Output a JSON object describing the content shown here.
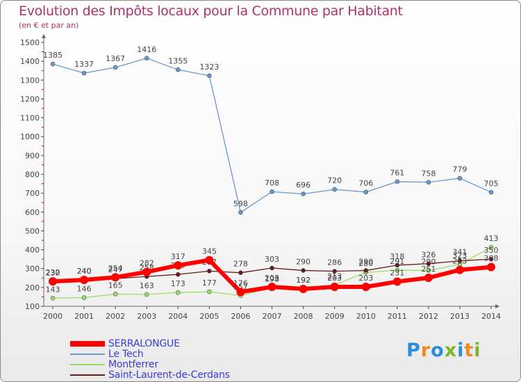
{
  "chart_data": {
    "type": "line",
    "title": "Evolution des Impôts locaux pour la Commune par Habitant",
    "subtitle": "(en € et par an)",
    "x": [
      "2000",
      "2001",
      "2002",
      "2003",
      "2004",
      "2005",
      "2006",
      "2007",
      "2008",
      "2009",
      "2010",
      "2011",
      "2012",
      "2013",
      "2014"
    ],
    "ylim": [
      100,
      1500
    ],
    "yticks": [
      100,
      200,
      300,
      400,
      500,
      600,
      700,
      800,
      900,
      1000,
      1100,
      1200,
      1300,
      1400,
      1500
    ],
    "grid": false,
    "series": [
      {
        "name": "SERRALONGUE",
        "color": "#ff0000",
        "bold": true,
        "values": [
          232,
          240,
          254,
          282,
          317,
          345,
          176,
          203,
          192,
          203,
          203,
          231,
          251,
          293,
          308
        ]
      },
      {
        "name": "Le Tech",
        "color": "#6699cc",
        "values": [
          1385,
          1337,
          1367,
          1416,
          1355,
          1323,
          598,
          708,
          696,
          720,
          706,
          761,
          758,
          779,
          705
        ]
      },
      {
        "name": "Montferrer",
        "color": "#99dd66",
        "values": [
          143,
          146,
          165,
          163,
          173,
          177,
          157,
          198,
          192,
          213,
          280,
          291,
          290,
          323,
          413
        ]
      },
      {
        "name": "Saint-Laurent-de-Cerdans",
        "color": "#661a1a",
        "values": [
          230,
          240,
          247,
          258,
          269,
          287,
          278,
          303,
          290,
          286,
          290,
          318,
          326,
          341,
          350
        ]
      }
    ]
  },
  "logo": {
    "letters": [
      "P",
      "r",
      "o",
      "x",
      "i",
      "t",
      "i"
    ],
    "colors": [
      "#2e8bd8",
      "#f08a1c",
      "#2e8bd8",
      "#7ab728",
      "#2e8bd8",
      "#f08a1c",
      "#7ab728"
    ]
  }
}
